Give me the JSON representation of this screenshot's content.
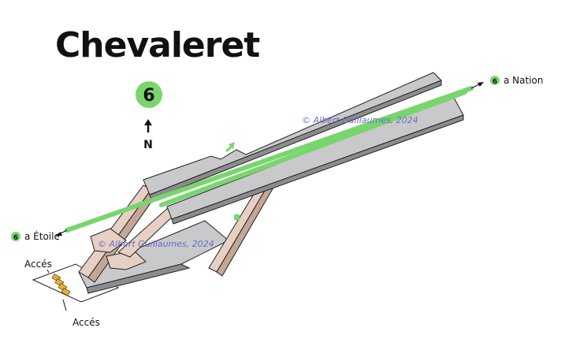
{
  "station": {
    "name": "Chevaleret",
    "line": "6"
  },
  "line_color": "#79d66f",
  "compass": {
    "label": "N"
  },
  "directions": {
    "east": {
      "line": "6",
      "text": "a Nation"
    },
    "west": {
      "line": "6",
      "text": "a Étoile"
    }
  },
  "exits": {
    "top": "Accés",
    "bottom": "Accés"
  },
  "watermark": {
    "text": "© Albert Guillaumes, 2024"
  }
}
